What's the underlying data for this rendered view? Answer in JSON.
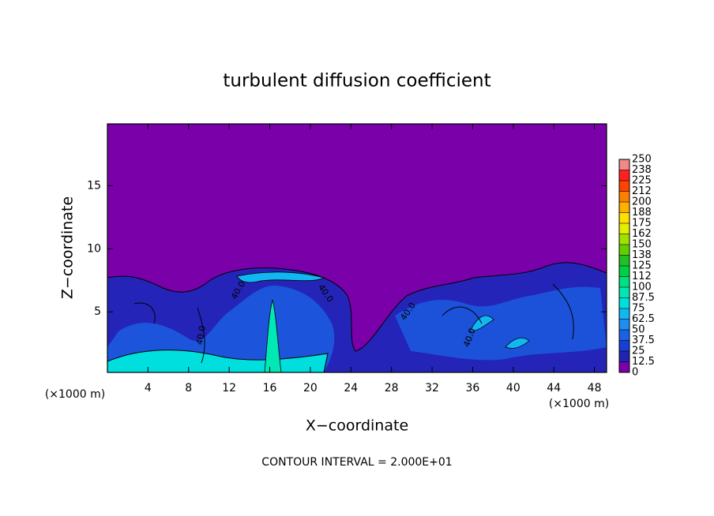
{
  "chart_data": {
    "type": "contour",
    "title": "turbulent diffusion coefficient",
    "xlabel": "X−coordinate",
    "ylabel": "Z−coordinate",
    "xunit": "(×1000 m)",
    "yunit": "(×1000 m)",
    "footer": "CONTOUR INTERVAL = 2.000E+01",
    "contour_labels": [
      "40.0",
      "40.0",
      "40.0",
      "40.0",
      "40.0"
    ],
    "xlim": [
      0,
      49.2
    ],
    "ylim": [
      0.2,
      19.9
    ],
    "xticks": [
      4,
      8,
      12,
      16,
      20,
      24,
      28,
      32,
      36,
      40,
      44,
      48
    ],
    "yticks": [
      5,
      10,
      15
    ],
    "colorbar": {
      "lim": [
        0,
        250
      ],
      "ticks": [
        0,
        12.5,
        25,
        37.5,
        50,
        62.5,
        75,
        87.5,
        100,
        {
          "value": 112.5,
          "label": "112"
        },
        125,
        {
          "value": 137.5,
          "label": "138"
        },
        150,
        {
          "value": 162.5,
          "label": "162"
        },
        175,
        {
          "value": 187.5,
          "label": "188"
        },
        200,
        {
          "value": 212.5,
          "label": "212"
        },
        225,
        {
          "value": 237.5,
          "label": "238"
        },
        250
      ],
      "colors": [
        "#7a00aa",
        "#2222b4",
        "#1440d4",
        "#1a62e4",
        "#1e8ef0",
        "#12b6f2",
        "#00dede",
        "#00e8b4",
        "#00e080",
        "#00d044",
        "#22c022",
        "#62d000",
        "#a2e000",
        "#e2f000",
        "#ffe000",
        "#ffb000",
        "#ff8000",
        "#ff4400",
        "#ff2020",
        "#f08888"
      ]
    }
  }
}
